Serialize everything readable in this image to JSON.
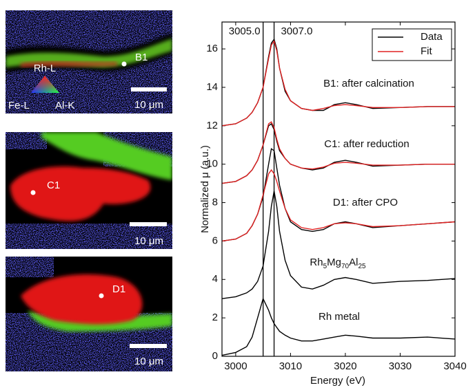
{
  "panels": [
    {
      "point": "B1",
      "scale": "10 μm",
      "triangle": {
        "top": "Rh-L",
        "left": "Fe-L",
        "right": "Al-K"
      }
    },
    {
      "point": "C1",
      "scale": "10 μm"
    },
    {
      "point": "D1",
      "scale": "10 μm"
    }
  ],
  "chart_data": {
    "type": "line",
    "xlabel": "Energy (eV)",
    "ylabel": "Normalized μ (a.u.)",
    "xlim": [
      2997.5,
      3040
    ],
    "ylim": [
      0,
      17.4
    ],
    "xticks": [
      3000,
      3010,
      3020,
      3030,
      3040
    ],
    "yticks": [
      0,
      2,
      4,
      6,
      8,
      10,
      12,
      14,
      16
    ],
    "vlines": [
      {
        "value": 3005.0,
        "label": "3005.0"
      },
      {
        "value": 3007.0,
        "label": "3007.0"
      }
    ],
    "legend": [
      {
        "name": "Data",
        "color": "#000000"
      },
      {
        "name": "Fit",
        "color": "#e02020"
      }
    ],
    "legend_position": "upper right",
    "x": [
      2997.5,
      3000,
      3002,
      3003,
      3004,
      3005,
      3006,
      3006.5,
      3007,
      3007.5,
      3008,
      3009,
      3010,
      3012,
      3014,
      3016,
      3018,
      3020,
      3022,
      3025,
      3030,
      3035,
      3040
    ],
    "series": [
      {
        "annotation": [
          "B1: after calcination"
        ],
        "values": [
          12.0,
          12.1,
          12.4,
          12.7,
          13.2,
          14.0,
          15.6,
          16.3,
          16.5,
          16.0,
          15.0,
          13.8,
          13.3,
          12.9,
          12.8,
          12.8,
          13.1,
          13.2,
          13.1,
          12.9,
          12.95,
          13.0,
          13.0
        ],
        "fit": [
          12.0,
          12.1,
          12.4,
          12.7,
          13.2,
          14.0,
          15.5,
          16.2,
          16.4,
          15.9,
          15.0,
          13.9,
          13.3,
          12.9,
          12.8,
          12.9,
          13.05,
          13.1,
          13.05,
          12.95,
          12.95,
          13.0,
          13.0
        ]
      },
      {
        "annotation": [
          "C1: after reduction"
        ],
        "values": [
          9.0,
          9.1,
          9.4,
          9.7,
          10.2,
          11.0,
          12.0,
          12.1,
          11.8,
          11.2,
          10.7,
          10.3,
          10.0,
          9.8,
          9.7,
          9.8,
          10.1,
          10.2,
          10.1,
          9.9,
          9.95,
          10.0,
          10.0
        ],
        "fit": [
          9.0,
          9.1,
          9.4,
          9.7,
          10.2,
          11.0,
          12.1,
          12.2,
          11.9,
          11.3,
          10.8,
          10.3,
          10.0,
          9.8,
          9.75,
          9.85,
          10.05,
          10.1,
          10.05,
          9.95,
          9.95,
          10.0,
          10.0
        ]
      },
      {
        "annotation": [
          "D1: after CPO"
        ],
        "values": [
          6.0,
          6.1,
          6.4,
          6.8,
          7.4,
          8.3,
          10.0,
          10.8,
          10.7,
          9.8,
          8.9,
          7.7,
          7.0,
          6.6,
          6.5,
          6.6,
          6.9,
          7.0,
          6.9,
          6.7,
          6.8,
          6.9,
          7.0
        ],
        "fit": [
          6.0,
          6.1,
          6.4,
          6.8,
          7.4,
          8.4,
          9.5,
          9.7,
          9.5,
          9.1,
          8.6,
          7.7,
          7.1,
          6.7,
          6.6,
          6.7,
          6.9,
          6.95,
          6.9,
          6.75,
          6.8,
          6.9,
          7.0
        ]
      },
      {
        "annotation": [
          "Rh",
          "5",
          "Mg",
          "70",
          "Al",
          "25"
        ],
        "values": [
          3.0,
          3.1,
          3.3,
          3.5,
          3.9,
          4.7,
          6.5,
          7.8,
          8.6,
          7.8,
          6.5,
          5.0,
          4.2,
          3.6,
          3.5,
          3.7,
          4.0,
          4.1,
          4.0,
          3.8,
          3.9,
          3.95,
          4.05
        ]
      },
      {
        "annotation": [
          "Rh metal"
        ],
        "values": [
          0.05,
          0.2,
          0.5,
          1.0,
          2.0,
          3.0,
          2.4,
          2.0,
          1.7,
          1.5,
          1.3,
          1.1,
          0.95,
          0.8,
          0.8,
          0.9,
          1.0,
          1.1,
          1.05,
          0.95,
          0.95,
          1.0,
          0.9
        ]
      }
    ]
  }
}
